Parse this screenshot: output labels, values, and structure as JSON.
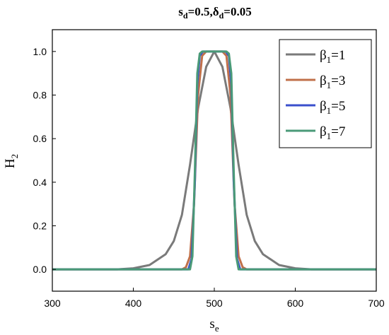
{
  "chart_data": {
    "type": "line",
    "title": {
      "main": "s",
      "sub1": "d",
      "mid": "=0.5,δ",
      "sub2": "d",
      "end": "=0.05"
    },
    "xlabel": {
      "main": "s",
      "sub": "e"
    },
    "ylabel": {
      "main": "H",
      "sub": "2"
    },
    "xlim": [
      300,
      700
    ],
    "ylim": [
      -0.1,
      1.1
    ],
    "xticks": [
      300,
      400,
      500,
      600,
      700
    ],
    "yticks": [
      0.0,
      0.2,
      0.4,
      0.6,
      0.8,
      1.0
    ],
    "ytick_labels": [
      "0.0",
      "0.2",
      "0.4",
      "0.6",
      "0.8",
      "1.0"
    ],
    "grid": false,
    "legend_position": "top-right",
    "series": [
      {
        "name": {
          "main": "β",
          "sub": "1",
          "rest": "=1"
        },
        "color": "#7a7a7a",
        "x": [
          300,
          380,
          400,
          420,
          440,
          450,
          460,
          470,
          480,
          490,
          500,
          510,
          520,
          530,
          540,
          550,
          560,
          580,
          600,
          620,
          700
        ],
        "y": [
          0,
          0.0,
          0.005,
          0.02,
          0.07,
          0.13,
          0.25,
          0.48,
          0.74,
          0.93,
          1.0,
          0.93,
          0.74,
          0.48,
          0.25,
          0.13,
          0.07,
          0.02,
          0.005,
          0.0,
          0
        ]
      },
      {
        "name": {
          "main": "β",
          "sub": "1",
          "rest": "=3"
        },
        "color": "#c0704a",
        "x": [
          300,
          460,
          465,
          470,
          475,
          480,
          485,
          490,
          500,
          510,
          515,
          520,
          525,
          530,
          535,
          540,
          700
        ],
        "y": [
          0,
          0.0,
          0.01,
          0.06,
          0.3,
          0.8,
          0.98,
          1.0,
          1.0,
          1.0,
          0.98,
          0.8,
          0.3,
          0.06,
          0.01,
          0.0,
          0
        ]
      },
      {
        "name": {
          "main": "β",
          "sub": "1",
          "rest": "=5"
        },
        "color": "#3a4fcc",
        "x": [
          300,
          468,
          472,
          476,
          479,
          482,
          486,
          500,
          514,
          518,
          521,
          524,
          528,
          532,
          700
        ],
        "y": [
          0,
          0.0,
          0.05,
          0.4,
          0.85,
          0.98,
          1.0,
          1.0,
          1.0,
          0.98,
          0.85,
          0.4,
          0.05,
          0.0,
          0
        ]
      },
      {
        "name": {
          "main": "β",
          "sub": "1",
          "rest": "=7"
        },
        "color": "#4a9a78",
        "x": [
          300,
          470,
          473,
          476,
          479,
          482,
          485,
          500,
          515,
          518,
          521,
          524,
          527,
          530,
          700
        ],
        "y": [
          0,
          0.0,
          0.06,
          0.45,
          0.9,
          0.99,
          1.0,
          1.0,
          1.0,
          0.99,
          0.9,
          0.45,
          0.06,
          0.0,
          0
        ]
      }
    ]
  }
}
